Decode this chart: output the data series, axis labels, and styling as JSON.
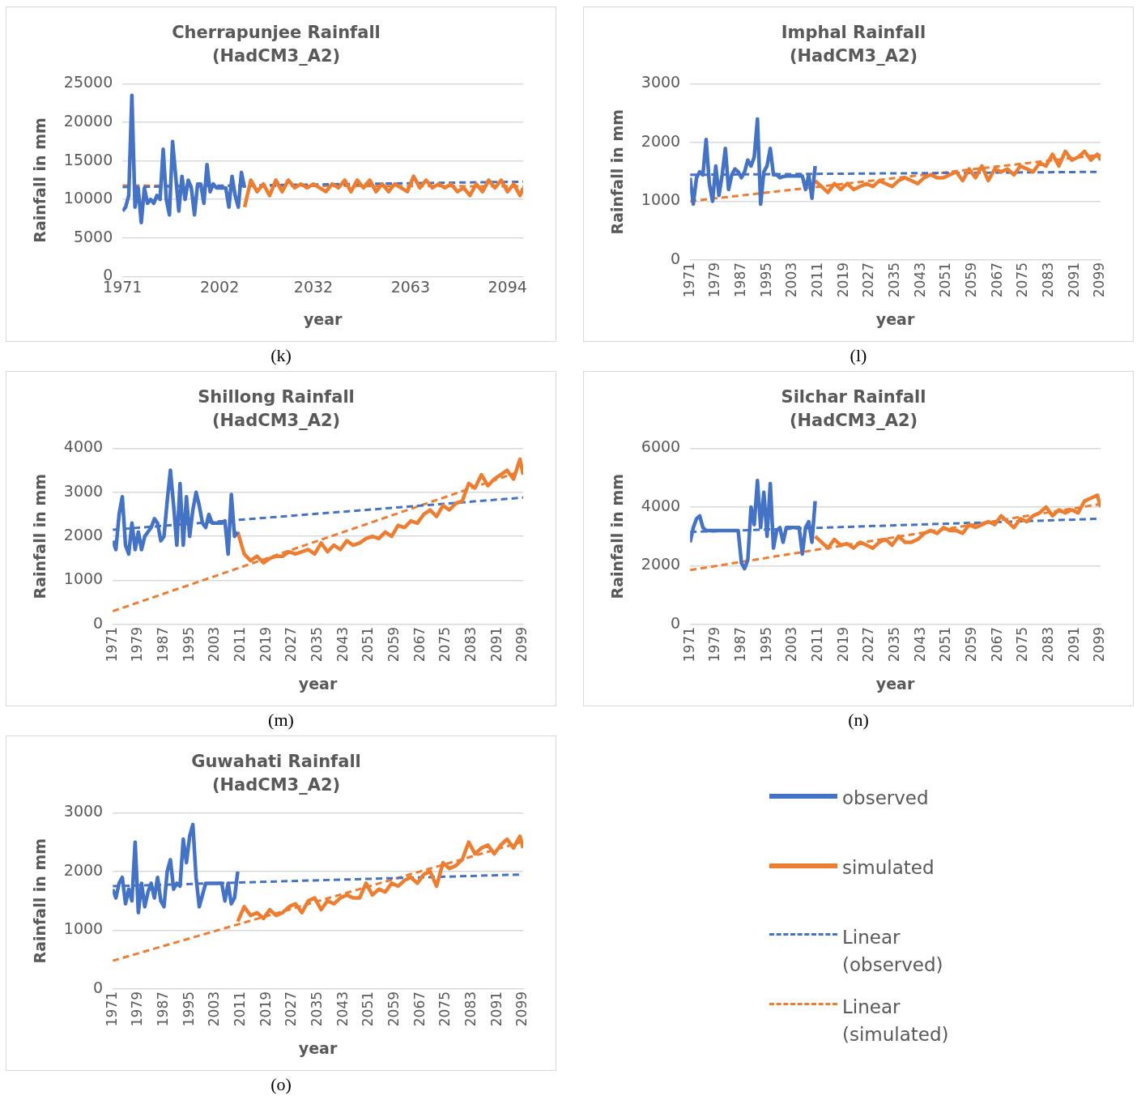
{
  "chart_data": [
    {
      "type": "line",
      "title": "Cherrapunjee Rainfall",
      "subtitle": "(HadCM3_A2)",
      "xlabel": "year",
      "ylabel": "Rainfall in mm",
      "xlim": [
        1971,
        2099
      ],
      "xticks": [
        1971,
        2002,
        2032,
        2063,
        2094
      ],
      "ylim": [
        0,
        25000
      ],
      "yticks": [
        0,
        5000,
        10000,
        15000,
        20000,
        25000
      ],
      "grid": "y",
      "marker": "none",
      "annotations": [
        "(k)"
      ],
      "series": [
        {
          "color": "#4472c4",
          "x": [
            1971,
            1972,
            1973,
            1974,
            1975,
            1976,
            1977,
            1978,
            1979,
            1980,
            1981,
            1982,
            1983,
            1984,
            1985,
            1986,
            1987,
            1988,
            1989,
            1990,
            1991,
            1992,
            1993,
            1994,
            1995,
            1996,
            1997,
            1998,
            1999,
            2000,
            2001,
            2002,
            2003,
            2004,
            2005,
            2006,
            2007,
            2008,
            2009,
            2010
          ],
          "values": [
            8500,
            9000,
            10500,
            23500,
            9000,
            11500,
            7000,
            11500,
            9500,
            10000,
            9500,
            10500,
            10000,
            16500,
            10000,
            8000,
            17500,
            13000,
            8500,
            13000,
            10000,
            12500,
            11500,
            8000,
            12000,
            12000,
            9500,
            14500,
            11000,
            12000,
            11500,
            11500,
            11500,
            11500,
            9000,
            13000,
            10500,
            9000,
            13500,
            11500
          ]
        },
        {
          "color": "#ed7d31",
          "x": [
            2010,
            2012,
            2014,
            2016,
            2018,
            2020,
            2022,
            2024,
            2026,
            2028,
            2030,
            2032,
            2034,
            2036,
            2038,
            2040,
            2042,
            2044,
            2046,
            2048,
            2050,
            2052,
            2054,
            2056,
            2058,
            2060,
            2062,
            2064,
            2066,
            2068,
            2070,
            2072,
            2074,
            2076,
            2078,
            2080,
            2082,
            2084,
            2086,
            2088,
            2090,
            2092,
            2094,
            2096,
            2098,
            2099
          ],
          "values": [
            9000,
            12500,
            11000,
            12000,
            10500,
            12500,
            11000,
            12500,
            11500,
            12000,
            11500,
            12000,
            11500,
            11000,
            12000,
            11500,
            12500,
            11000,
            12500,
            11500,
            12500,
            11000,
            12000,
            11000,
            12000,
            11500,
            11000,
            13000,
            11500,
            12500,
            11500,
            12000,
            11500,
            12000,
            11000,
            11500,
            10500,
            12000,
            11000,
            12500,
            11500,
            12500,
            11000,
            12000,
            10500,
            11500
          ]
        },
        {
          "color": "#4472c4",
          "line_style": "dashed",
          "x": [
            1971,
            2099
          ],
          "values": [
            11600,
            12300
          ]
        },
        {
          "color": "#ed7d31",
          "line_style": "dashed",
          "x": [
            1971,
            2099
          ],
          "values": [
            11800,
            11700
          ]
        }
      ]
    },
    {
      "type": "line",
      "title": "Imphal Rainfall",
      "subtitle": "(HadCM3_A2)",
      "xlabel": "year",
      "ylabel": "Rainfall in mm",
      "xlim": [
        1971,
        2099
      ],
      "xticks": [
        1971,
        1979,
        1987,
        1995,
        2003,
        2011,
        2019,
        2027,
        2035,
        2043,
        2051,
        2059,
        2067,
        2075,
        2083,
        2091,
        2099
      ],
      "ylim": [
        0,
        3000
      ],
      "yticks": [
        0,
        1000,
        2000,
        3000
      ],
      "grid": "y",
      "marker": "none",
      "annotations": [
        "(l)"
      ],
      "series": [
        {
          "color": "#4472c4",
          "x": [
            1971,
            1972,
            1973,
            1974,
            1975,
            1976,
            1977,
            1978,
            1979,
            1980,
            1981,
            1982,
            1983,
            1984,
            1985,
            1986,
            1987,
            1988,
            1989,
            1990,
            1991,
            1992,
            1993,
            1994,
            1995,
            1996,
            1997,
            1998,
            1999,
            2000,
            2001,
            2002,
            2003,
            2004,
            2005,
            2006,
            2007,
            2008,
            2009,
            2010
          ],
          "values": [
            1400,
            950,
            1400,
            1500,
            1450,
            2050,
            1300,
            1000,
            1600,
            1100,
            1450,
            1900,
            1200,
            1450,
            1550,
            1500,
            1400,
            1500,
            1700,
            1600,
            1750,
            2400,
            950,
            1500,
            1600,
            1900,
            1450,
            1450,
            1400,
            1420,
            1430,
            1430,
            1430,
            1430,
            1430,
            1430,
            1200,
            1450,
            1050,
            1600
          ]
        },
        {
          "color": "#ed7d31",
          "x": [
            2010,
            2012,
            2014,
            2016,
            2018,
            2020,
            2022,
            2024,
            2026,
            2028,
            2030,
            2032,
            2034,
            2036,
            2038,
            2040,
            2042,
            2044,
            2046,
            2048,
            2050,
            2052,
            2054,
            2056,
            2058,
            2060,
            2062,
            2064,
            2066,
            2068,
            2070,
            2072,
            2074,
            2076,
            2078,
            2080,
            2082,
            2084,
            2086,
            2088,
            2090,
            2092,
            2094,
            2096,
            2098,
            2099
          ],
          "values": [
            1350,
            1250,
            1150,
            1300,
            1200,
            1300,
            1200,
            1250,
            1300,
            1250,
            1350,
            1300,
            1250,
            1350,
            1400,
            1350,
            1300,
            1400,
            1450,
            1400,
            1400,
            1450,
            1500,
            1350,
            1550,
            1400,
            1600,
            1350,
            1550,
            1500,
            1550,
            1450,
            1600,
            1550,
            1500,
            1650,
            1600,
            1800,
            1600,
            1850,
            1700,
            1750,
            1850,
            1700,
            1800,
            1700
          ]
        },
        {
          "color": "#4472c4",
          "line_style": "dashed",
          "x": [
            1971,
            2099
          ],
          "values": [
            1450,
            1500
          ]
        },
        {
          "color": "#ed7d31",
          "line_style": "dashed",
          "x": [
            1971,
            2099
          ],
          "values": [
            1000,
            1790
          ]
        }
      ]
    },
    {
      "type": "line",
      "title": "Shillong Rainfall",
      "subtitle": "(HadCM3_A2)",
      "xlabel": "year",
      "ylabel": "Rainfall in mm",
      "xlim": [
        1971,
        2099
      ],
      "xticks": [
        1971,
        1979,
        1987,
        1995,
        2003,
        2011,
        2019,
        2027,
        2035,
        2043,
        2051,
        2059,
        2067,
        2075,
        2083,
        2091,
        2099
      ],
      "ylim": [
        0,
        4000
      ],
      "yticks": [
        0,
        1000,
        2000,
        3000,
        4000
      ],
      "grid": "y",
      "marker": "none",
      "annotations": [
        "(m)"
      ],
      "series": [
        {
          "color": "#4472c4",
          "x": [
            1971,
            1972,
            1973,
            1974,
            1975,
            1976,
            1977,
            1978,
            1979,
            1980,
            1981,
            1982,
            1983,
            1984,
            1985,
            1986,
            1987,
            1988,
            1989,
            1990,
            1991,
            1992,
            1993,
            1994,
            1995,
            1996,
            1997,
            1998,
            1999,
            2000,
            2001,
            2002,
            2003,
            2004,
            2005,
            2006,
            2007,
            2008,
            2009,
            2010
          ],
          "values": [
            1900,
            1700,
            2500,
            2900,
            1800,
            1600,
            2300,
            1700,
            2100,
            1700,
            2000,
            2100,
            2200,
            2400,
            2300,
            1900,
            2000,
            2800,
            3500,
            2700,
            1800,
            3200,
            1800,
            2900,
            2000,
            2600,
            3000,
            2700,
            2300,
            2200,
            2500,
            2300,
            2300,
            2300,
            2300,
            2350,
            1600,
            2950,
            2000,
            2100
          ]
        },
        {
          "color": "#ed7d31",
          "x": [
            2010,
            2012,
            2014,
            2016,
            2018,
            2020,
            2022,
            2024,
            2026,
            2028,
            2030,
            2032,
            2034,
            2036,
            2038,
            2040,
            2042,
            2044,
            2046,
            2048,
            2050,
            2052,
            2054,
            2056,
            2058,
            2060,
            2062,
            2064,
            2066,
            2068,
            2070,
            2072,
            2074,
            2076,
            2078,
            2080,
            2082,
            2084,
            2086,
            2088,
            2090,
            2092,
            2094,
            2096,
            2098,
            2099
          ],
          "values": [
            2100,
            1600,
            1450,
            1550,
            1400,
            1500,
            1550,
            1550,
            1650,
            1600,
            1650,
            1700,
            1600,
            1850,
            1650,
            1800,
            1700,
            1900,
            1800,
            1850,
            1950,
            2000,
            1950,
            2100,
            2000,
            2250,
            2200,
            2350,
            2300,
            2500,
            2600,
            2450,
            2700,
            2600,
            2750,
            2800,
            3200,
            3100,
            3400,
            3150,
            3300,
            3400,
            3500,
            3300,
            3750,
            3400
          ]
        },
        {
          "color": "#4472c4",
          "line_style": "dashed",
          "x": [
            1971,
            2099
          ],
          "values": [
            2150,
            2880
          ]
        },
        {
          "color": "#ed7d31",
          "line_style": "dashed",
          "x": [
            1971,
            2099
          ],
          "values": [
            300,
            3500
          ]
        }
      ]
    },
    {
      "type": "line",
      "title": "Silchar Rainfall",
      "subtitle": "(HadCM3_A2)",
      "xlabel": "year",
      "ylabel": "Rainfall in mm",
      "xlim": [
        1971,
        2099
      ],
      "xticks": [
        1971,
        1979,
        1987,
        1995,
        2003,
        2011,
        2019,
        2027,
        2035,
        2043,
        2051,
        2059,
        2067,
        2075,
        2083,
        2091,
        2099
      ],
      "ylim": [
        0,
        6000
      ],
      "yticks": [
        0,
        2000,
        4000,
        6000
      ],
      "grid": "y",
      "marker": "none",
      "annotations": [
        "(n)"
      ],
      "series": [
        {
          "color": "#4472c4",
          "x": [
            1971,
            1972,
            1973,
            1974,
            1975,
            1976,
            1977,
            1978,
            1979,
            1980,
            1981,
            1982,
            1983,
            1984,
            1985,
            1986,
            1987,
            1988,
            1989,
            1990,
            1991,
            1992,
            1993,
            1994,
            1995,
            1996,
            1997,
            1998,
            1999,
            2000,
            2001,
            2002,
            2003,
            2004,
            2005,
            2006,
            2007,
            2008,
            2009,
            2010
          ],
          "values": [
            2800,
            3300,
            3600,
            3700,
            3300,
            3200,
            3200,
            3200,
            3200,
            3200,
            3200,
            3200,
            3200,
            3200,
            3200,
            3200,
            2100,
            1900,
            2200,
            4000,
            3400,
            4900,
            3300,
            4500,
            3000,
            4800,
            2600,
            3200,
            3300,
            2800,
            3300,
            3300,
            3300,
            3300,
            3300,
            2400,
            3300,
            3500,
            2800,
            4200
          ]
        },
        {
          "color": "#ed7d31",
          "x": [
            2010,
            2012,
            2014,
            2016,
            2018,
            2020,
            2022,
            2024,
            2026,
            2028,
            2030,
            2032,
            2034,
            2036,
            2038,
            2040,
            2042,
            2044,
            2046,
            2048,
            2050,
            2052,
            2054,
            2056,
            2058,
            2060,
            2062,
            2064,
            2066,
            2068,
            2070,
            2072,
            2074,
            2076,
            2078,
            2080,
            2082,
            2084,
            2086,
            2088,
            2090,
            2092,
            2094,
            2096,
            2098,
            2099
          ],
          "values": [
            3000,
            2800,
            2600,
            2900,
            2700,
            2750,
            2600,
            2800,
            2700,
            2600,
            2800,
            2900,
            2700,
            3000,
            2800,
            2800,
            2900,
            3100,
            3200,
            3100,
            3300,
            3200,
            3200,
            3100,
            3400,
            3300,
            3400,
            3500,
            3400,
            3700,
            3500,
            3300,
            3600,
            3500,
            3700,
            3800,
            4000,
            3700,
            3900,
            3800,
            3900,
            3800,
            4200,
            4300,
            4400,
            4000
          ]
        },
        {
          "color": "#4472c4",
          "line_style": "dashed",
          "x": [
            1971,
            2099
          ],
          "values": [
            3150,
            3600
          ]
        },
        {
          "color": "#ed7d31",
          "line_style": "dashed",
          "x": [
            1971,
            2099
          ],
          "values": [
            1850,
            4100
          ]
        }
      ]
    },
    {
      "type": "line",
      "title": "Guwahati Rainfall",
      "subtitle": "(HadCM3_A2)",
      "xlabel": "year",
      "ylabel": "Rainfall in mm",
      "xlim": [
        1971,
        2099
      ],
      "xticks": [
        1971,
        1979,
        1987,
        1995,
        2003,
        2011,
        2019,
        2027,
        2035,
        2043,
        2051,
        2059,
        2067,
        2075,
        2083,
        2091,
        2099
      ],
      "ylim": [
        0,
        3000
      ],
      "yticks": [
        0,
        1000,
        2000,
        3000
      ],
      "grid": "y",
      "marker": "none",
      "legend": "right",
      "annotations": [
        "(o)"
      ],
      "series": [
        {
          "name": "observed",
          "color": "#4472c4",
          "x": [
            1971,
            1972,
            1973,
            1974,
            1975,
            1976,
            1977,
            1978,
            1979,
            1980,
            1981,
            1982,
            1983,
            1984,
            1985,
            1986,
            1987,
            1988,
            1989,
            1990,
            1991,
            1992,
            1993,
            1994,
            1995,
            1996,
            1997,
            1998,
            1999,
            2000,
            2001,
            2002,
            2003,
            2004,
            2005,
            2006,
            2007,
            2008,
            2009,
            2010
          ],
          "values": [
            1700,
            1550,
            1800,
            1900,
            1450,
            1700,
            1500,
            2500,
            1300,
            1800,
            1400,
            1650,
            1800,
            1550,
            1900,
            1500,
            1400,
            2000,
            2200,
            1700,
            1800,
            1750,
            2550,
            2150,
            2600,
            2800,
            1900,
            1400,
            1600,
            1800,
            1800,
            1800,
            1800,
            1800,
            1800,
            1500,
            1800,
            1450,
            1550,
            2000
          ]
        },
        {
          "name": "simulated",
          "color": "#ed7d31",
          "x": [
            2010,
            2012,
            2014,
            2016,
            2018,
            2020,
            2022,
            2024,
            2026,
            2028,
            2030,
            2032,
            2034,
            2036,
            2038,
            2040,
            2042,
            2044,
            2046,
            2048,
            2050,
            2052,
            2054,
            2056,
            2058,
            2060,
            2062,
            2064,
            2066,
            2068,
            2070,
            2072,
            2074,
            2076,
            2078,
            2080,
            2082,
            2084,
            2086,
            2088,
            2090,
            2092,
            2094,
            2096,
            2098,
            2099
          ],
          "values": [
            1150,
            1400,
            1250,
            1300,
            1200,
            1350,
            1250,
            1300,
            1400,
            1450,
            1300,
            1500,
            1550,
            1350,
            1500,
            1450,
            1550,
            1600,
            1550,
            1550,
            1800,
            1600,
            1700,
            1650,
            1800,
            1750,
            1850,
            1900,
            1800,
            1950,
            2000,
            1750,
            2150,
            2050,
            2100,
            2200,
            2500,
            2300,
            2400,
            2450,
            2300,
            2450,
            2550,
            2400,
            2600,
            2400
          ]
        },
        {
          "name": "Linear (observed)",
          "color": "#4472c4",
          "line_style": "dashed",
          "x": [
            1971,
            2099
          ],
          "values": [
            1750,
            1950
          ]
        },
        {
          "name": "Linear (simulated)",
          "color": "#ed7d31",
          "line_style": "dashed",
          "x": [
            1971,
            2099
          ],
          "values": [
            480,
            2510
          ]
        }
      ]
    }
  ]
}
